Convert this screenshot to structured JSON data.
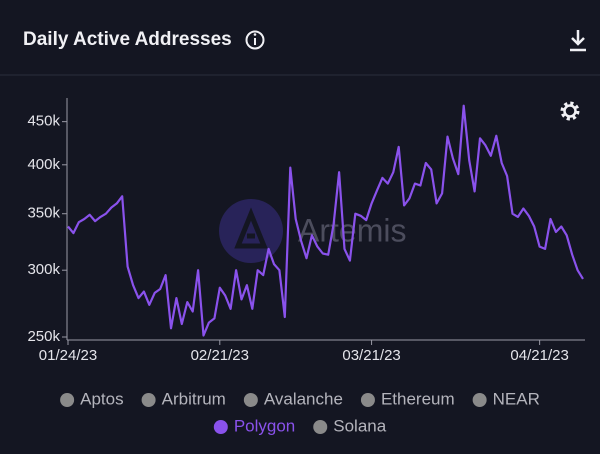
{
  "chart_data": {
    "type": "line",
    "title": "Daily Active Addresses",
    "watermark": "Artemis",
    "log_scale": true,
    "ylim": [
      250000,
      480000
    ],
    "yticks": [
      {
        "value": 250000,
        "label": "250k"
      },
      {
        "value": 300000,
        "label": "300k"
      },
      {
        "value": 350000,
        "label": "350k"
      },
      {
        "value": 400000,
        "label": "400k"
      },
      {
        "value": 450000,
        "label": "450k"
      }
    ],
    "x": [
      "01/24/23",
      "01/25/23",
      "01/26/23",
      "01/27/23",
      "01/28/23",
      "01/29/23",
      "01/30/23",
      "01/31/23",
      "02/01/23",
      "02/02/23",
      "02/03/23",
      "02/04/23",
      "02/05/23",
      "02/06/23",
      "02/07/23",
      "02/08/23",
      "02/09/23",
      "02/10/23",
      "02/11/23",
      "02/12/23",
      "02/13/23",
      "02/14/23",
      "02/15/23",
      "02/16/23",
      "02/17/23",
      "02/18/23",
      "02/19/23",
      "02/20/23",
      "02/21/23",
      "02/22/23",
      "02/23/23",
      "02/24/23",
      "02/25/23",
      "02/26/23",
      "02/27/23",
      "02/28/23",
      "03/01/23",
      "03/02/23",
      "03/03/23",
      "03/04/23",
      "03/05/23",
      "03/06/23",
      "03/07/23",
      "03/08/23",
      "03/09/23",
      "03/10/23",
      "03/11/23",
      "03/12/23",
      "03/13/23",
      "03/14/23",
      "03/15/23",
      "03/16/23",
      "03/17/23",
      "03/18/23",
      "03/19/23",
      "03/20/23",
      "03/21/23",
      "03/22/23",
      "03/23/23",
      "03/24/23",
      "03/25/23",
      "03/26/23",
      "03/27/23",
      "03/28/23",
      "03/29/23",
      "03/30/23",
      "03/31/23",
      "04/01/23",
      "04/02/23",
      "04/03/23",
      "04/04/23",
      "04/05/23",
      "04/06/23",
      "04/07/23",
      "04/08/23",
      "04/09/23",
      "04/10/23",
      "04/11/23",
      "04/12/23",
      "04/13/23",
      "04/14/23",
      "04/15/23",
      "04/16/23",
      "04/17/23",
      "04/18/23",
      "04/19/23",
      "04/20/23",
      "04/21/23",
      "04/22/23",
      "04/23/23",
      "04/24/23",
      "04/25/23",
      "04/26/23",
      "04/27/23",
      "04/28/23",
      "04/29/23"
    ],
    "xticks": [
      "01/24/23",
      "02/21/23",
      "03/21/23",
      "04/21/23"
    ],
    "series": [
      {
        "name": "Aptos",
        "color": "#8a8a8a",
        "visible": false
      },
      {
        "name": "Arbitrum",
        "color": "#8a8a8a",
        "visible": false
      },
      {
        "name": "Avalanche",
        "color": "#8a8a8a",
        "visible": false
      },
      {
        "name": "Ethereum",
        "color": "#8a8a8a",
        "visible": false
      },
      {
        "name": "NEAR",
        "color": "#8a8a8a",
        "visible": false
      },
      {
        "name": "Polygon",
        "color": "#8a52ec",
        "visible": true,
        "values": [
          338000,
          332000,
          342000,
          345000,
          349000,
          343000,
          347000,
          350000,
          356000,
          360000,
          367000,
          303000,
          288000,
          278000,
          283000,
          273000,
          282000,
          285000,
          296000,
          256000,
          278000,
          259000,
          275000,
          268000,
          300000,
          251000,
          260000,
          263000,
          286000,
          280000,
          270000,
          300000,
          277000,
          288000,
          270000,
          300000,
          296000,
          318000,
          305000,
          300000,
          264000,
          397000,
          345000,
          325000,
          310000,
          330000,
          320000,
          314000,
          313000,
          340000,
          392000,
          318000,
          308000,
          350000,
          348000,
          344000,
          360000,
          373000,
          386000,
          380000,
          392000,
          420000,
          358000,
          365000,
          380000,
          378000,
          402000,
          395000,
          360000,
          370000,
          432000,
          407000,
          390000,
          470000,
          405000,
          372000,
          430000,
          422000,
          410000,
          433000,
          402000,
          388000,
          350000,
          347000,
          355000,
          348000,
          338000,
          320000,
          318000,
          345000,
          333000,
          338000,
          330000,
          313000,
          300000,
          293000
        ]
      },
      {
        "name": "Solana",
        "color": "#8a8a8a",
        "visible": false
      }
    ]
  }
}
